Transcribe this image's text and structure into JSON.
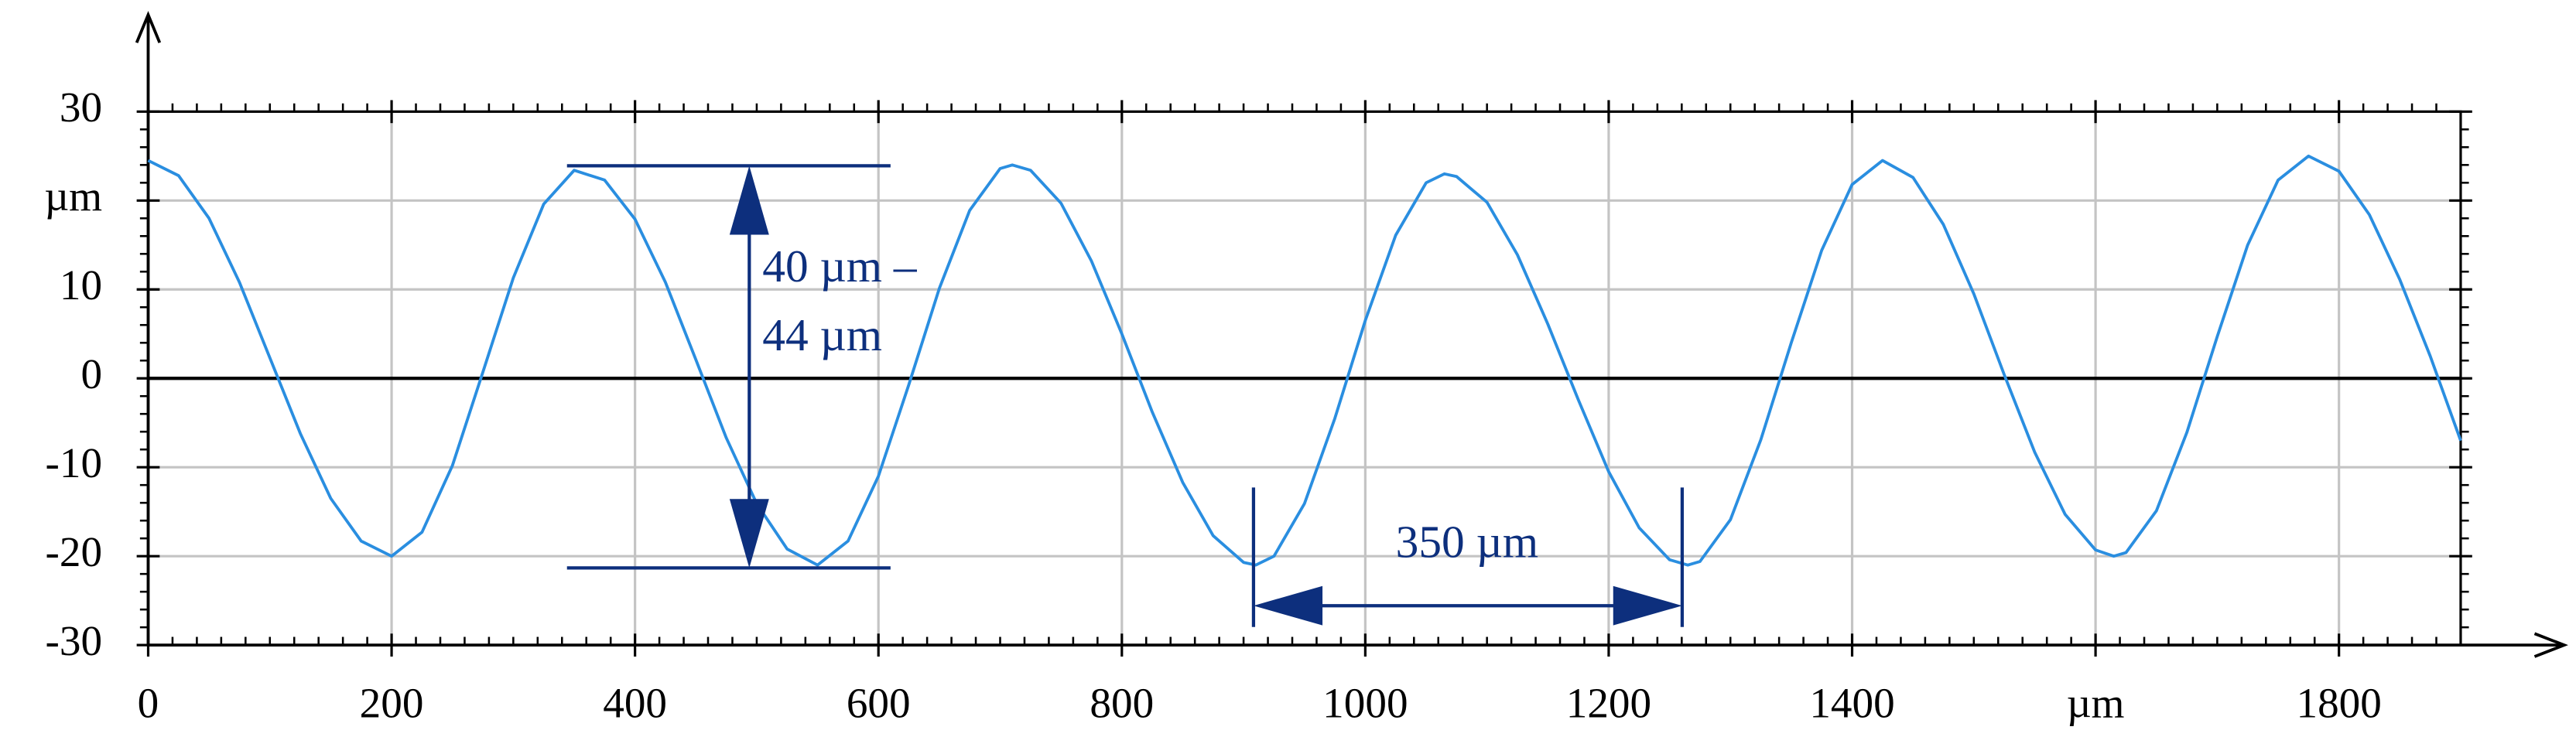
{
  "chart_data": {
    "type": "line",
    "x": [
      0,
      25,
      50,
      75,
      100,
      125,
      150,
      175,
      200,
      225,
      250,
      275,
      300,
      325,
      350,
      375,
      400,
      425,
      450,
      475,
      500,
      525,
      550,
      575,
      600,
      625,
      650,
      675,
      700,
      710,
      725,
      750,
      775,
      800,
      825,
      850,
      875,
      900,
      910,
      925,
      950,
      975,
      1000,
      1025,
      1050,
      1065,
      1075,
      1100,
      1125,
      1150,
      1175,
      1200,
      1225,
      1250,
      1265,
      1275,
      1300,
      1325,
      1350,
      1375,
      1400,
      1425,
      1450,
      1475,
      1500,
      1525,
      1550,
      1575,
      1600,
      1615,
      1625,
      1650,
      1675,
      1700,
      1725,
      1750,
      1775,
      1800,
      1825,
      1850,
      1875,
      1900
    ],
    "series": [
      {
        "color": "#2a8ee0",
        "values": [
          24.5,
          22.8,
          18.0,
          10.8,
          2.3,
          -6.2,
          -13.5,
          -18.3,
          -20,
          -17.3,
          -9.8,
          0.7,
          11.3,
          19.6,
          23.4,
          22.3,
          17.9,
          10.8,
          2.1,
          -6.7,
          -14.1,
          -19.2,
          -21,
          -18.3,
          -11.0,
          -0.7,
          10.1,
          18.9,
          23.6,
          24,
          23.4,
          19.7,
          13.2,
          5.0,
          -3.8,
          -11.7,
          -17.7,
          -20.7,
          -21,
          -20.0,
          -14.1,
          -4.5,
          6.5,
          16.1,
          22.0,
          23,
          22.7,
          19.8,
          13.9,
          6.1,
          -2.4,
          -10.5,
          -16.8,
          -20.4,
          -21,
          -20.6,
          -15.9,
          -6.9,
          4.0,
          14.4,
          21.8,
          24.5,
          22.6,
          17.3,
          9.5,
          0.4,
          -8.3,
          -15.3,
          -19.3,
          -20,
          -19.6,
          -14.9,
          -6.1,
          4.7,
          15.0,
          22.3,
          25,
          23.3,
          18.4,
          11.1,
          2.5,
          -7
        ]
      }
    ],
    "xlim": [
      0,
      1900
    ],
    "xticks": [
      0,
      200,
      400,
      600,
      800,
      1000,
      1200,
      1400,
      {
        "value": 1600,
        "label": "µm"
      },
      1800
    ],
    "ylim": [
      -30,
      30
    ],
    "yticks": [
      -30,
      -20,
      -10,
      0,
      10,
      {
        "value": 20,
        "label": "µm"
      },
      30
    ],
    "grid": true,
    "annotations": [
      "40 µm –",
      "44 µm",
      "350 µm"
    ]
  }
}
